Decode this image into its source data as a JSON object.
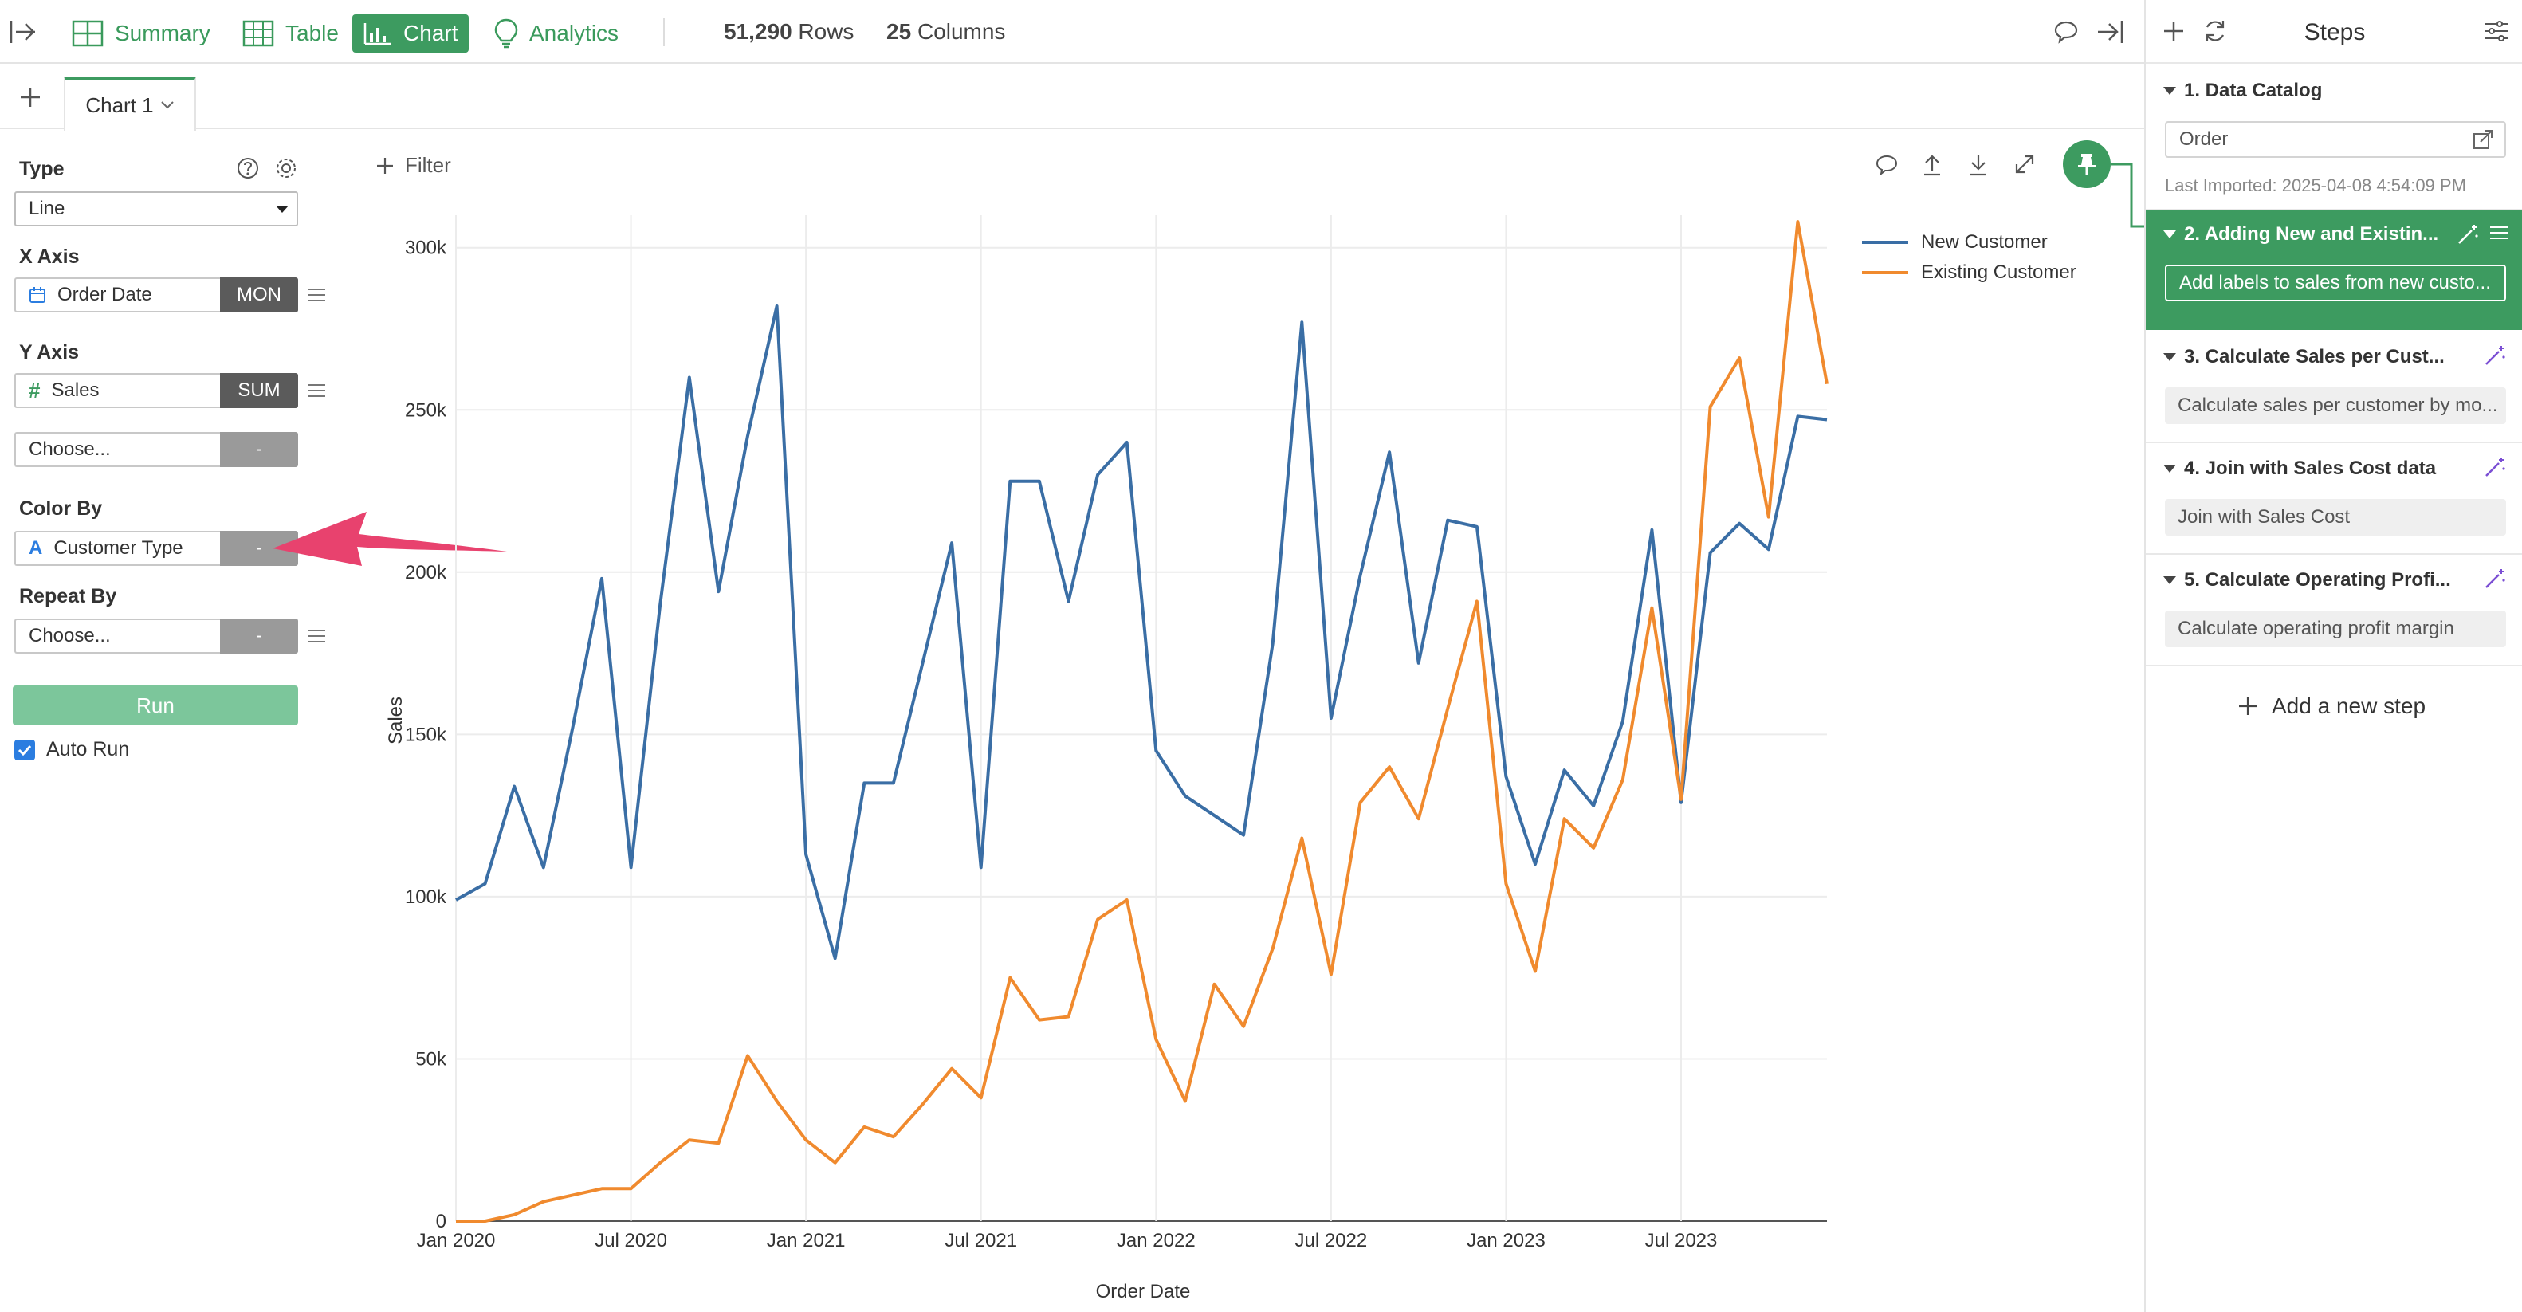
{
  "topbar": {
    "tabs": [
      {
        "label": "Summary",
        "icon": "summary-icon"
      },
      {
        "label": "Table",
        "icon": "table-icon"
      },
      {
        "label": "Chart",
        "icon": "chart-icon"
      },
      {
        "label": "Analytics",
        "icon": "lightbulb-icon"
      }
    ],
    "active_tab": "Chart",
    "rows_count": "51,290",
    "rows_label": "Rows",
    "columns_count": "25",
    "columns_label": "Columns"
  },
  "chart_tab": {
    "label": "Chart 1"
  },
  "config": {
    "type_label": "Type",
    "type_value": "Line",
    "xaxis_label": "X Axis",
    "xaxis_field": "Order Date",
    "xaxis_agg": "MON",
    "yaxis_label": "Y Axis",
    "yaxis_field": "Sales",
    "yaxis_agg": "SUM",
    "yaxis2_placeholder": "Choose...",
    "yaxis2_agg": "-",
    "colorby_label": "Color By",
    "colorby_field": "Customer Type",
    "colorby_agg": "-",
    "repeatby_label": "Repeat By",
    "repeatby_placeholder": "Choose...",
    "repeatby_agg": "-",
    "run_label": "Run",
    "autorun_label": "Auto Run",
    "autorun_checked": true
  },
  "filter_label": "Filter",
  "steps": {
    "title": "Steps",
    "items": [
      {
        "title": "1. Data Catalog",
        "box": "Order",
        "note": "Last Imported: 2025-04-08 4:54:09 PM"
      },
      {
        "title": "2. Adding New and Existin...",
        "box": "Add labels to sales from new custo...",
        "active": true
      },
      {
        "title": "3. Calculate Sales per Cust...",
        "box": "Calculate sales per customer by mo..."
      },
      {
        "title": "4. Join with Sales Cost data",
        "box": "Join with Sales Cost"
      },
      {
        "title": "5. Calculate Operating Profi...",
        "box": "Calculate operating profit margin"
      }
    ],
    "add_label": "Add a new step"
  },
  "colors": {
    "accent": "#3d9b60",
    "new_customer": "#3a6ea5",
    "existing_customer": "#f08a2e",
    "arrow": "#e8426e"
  },
  "chart_data": {
    "type": "line",
    "xlabel": "Order Date",
    "ylabel": "Sales",
    "ylim": [
      0,
      310000
    ],
    "yticks": [
      0,
      50000,
      100000,
      150000,
      200000,
      250000,
      300000
    ],
    "ytick_labels": [
      "0",
      "50k",
      "100k",
      "150k",
      "200k",
      "250k",
      "300k"
    ],
    "xticks": [
      "2020-01",
      "2020-07",
      "2021-01",
      "2021-07",
      "2022-01",
      "2022-07",
      "2023-01",
      "2023-07"
    ],
    "xtick_labels": [
      "Jan 2020",
      "Jul 2020",
      "Jan 2021",
      "Jul 2021",
      "Jan 2022",
      "Jul 2022",
      "Jan 2023",
      "Jul 2023"
    ],
    "legend_position": "top-right",
    "grid": true,
    "x": [
      "2020-01",
      "2020-02",
      "2020-03",
      "2020-04",
      "2020-05",
      "2020-06",
      "2020-07",
      "2020-08",
      "2020-09",
      "2020-10",
      "2020-11",
      "2020-12",
      "2021-01",
      "2021-02",
      "2021-03",
      "2021-04",
      "2021-05",
      "2021-06",
      "2021-07",
      "2021-08",
      "2021-09",
      "2021-10",
      "2021-11",
      "2021-12",
      "2022-01",
      "2022-02",
      "2022-03",
      "2022-04",
      "2022-05",
      "2022-06",
      "2022-07",
      "2022-08",
      "2022-09",
      "2022-10",
      "2022-11",
      "2022-12",
      "2023-01",
      "2023-02",
      "2023-03",
      "2023-04",
      "2023-05",
      "2023-06",
      "2023-07",
      "2023-08",
      "2023-09",
      "2023-10",
      "2023-11",
      "2023-12"
    ],
    "series": [
      {
        "name": "New Customer",
        "color": "#3a6ea5",
        "values": [
          99000,
          104000,
          134000,
          109000,
          152000,
          198000,
          109000,
          190000,
          260000,
          194000,
          242000,
          282000,
          113000,
          81000,
          135000,
          135000,
          172000,
          209000,
          109000,
          228000,
          228000,
          191000,
          230000,
          240000,
          145000,
          131000,
          125000,
          119000,
          178000,
          277000,
          155000,
          199000,
          237000,
          172000,
          216000,
          214000,
          137000,
          110000,
          139000,
          128000,
          154000,
          213000,
          129000,
          206000,
          215000,
          207000,
          248000,
          247000
        ]
      },
      {
        "name": "Existing Customer",
        "color": "#f08a2e",
        "values": [
          0,
          0,
          2000,
          6000,
          8000,
          10000,
          10000,
          18000,
          25000,
          24000,
          51000,
          37000,
          25000,
          18000,
          29000,
          26000,
          36000,
          47000,
          38000,
          75000,
          62000,
          63000,
          93000,
          99000,
          56000,
          37000,
          73000,
          60000,
          84000,
          118000,
          76000,
          129000,
          140000,
          124000,
          158000,
          191000,
          104000,
          77000,
          124000,
          115000,
          136000,
          189000,
          130000,
          251000,
          266000,
          217000,
          308000,
          258000
        ]
      }
    ]
  }
}
